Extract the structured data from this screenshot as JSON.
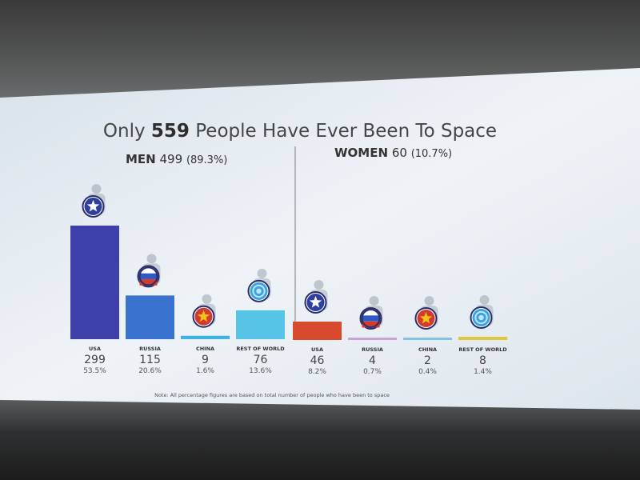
{
  "title": {
    "prefix": "Only",
    "number": "559",
    "suffix": "People Have Ever Been To Space"
  },
  "note": "Note: All percentage figures are based on total number of people who have been to space",
  "colors": {
    "usa": "#3e3fa8",
    "russia": "#3a72cf",
    "china": "#3fb3e0",
    "rest_of_world": "#55c4e6",
    "women_usa": "#d84a2e",
    "women_russia": "#c9a0d8",
    "women_china": "#7fc4e0",
    "women_rest": "#e0c63a",
    "flag_red": "#d33a2c",
    "flag_yellow": "#f2c21a",
    "flag_blue": "#2e3f9e"
  },
  "chart_data": [
    {
      "type": "bar",
      "group_label": "MEN",
      "group_total": "499",
      "group_share": "(89.3%)",
      "categories": [
        "USA",
        "RUSSIA",
        "CHINA",
        "REST OF WORLD"
      ],
      "values": [
        299,
        115,
        9,
        76
      ],
      "percent_labels": [
        "53.5%",
        "20.6%",
        "1.6%",
        "13.6%"
      ],
      "icons": [
        "usa-star-shield-icon",
        "russia-flag-shield-icon",
        "china-star-shield-icon",
        "world-shield-icon"
      ]
    },
    {
      "type": "bar",
      "group_label": "WOMEN",
      "group_total": "60",
      "group_share": "(10.7%)",
      "categories": [
        "USA",
        "RUSSIA",
        "CHINA",
        "REST OF WORLD"
      ],
      "values": [
        46,
        4,
        2,
        8
      ],
      "percent_labels": [
        "8.2%",
        "0.7%",
        "0.4%",
        "1.4%"
      ],
      "icons": [
        "usa-star-shield-icon",
        "russia-flag-shield-icon",
        "china-star-shield-icon",
        "world-shield-icon"
      ]
    }
  ]
}
